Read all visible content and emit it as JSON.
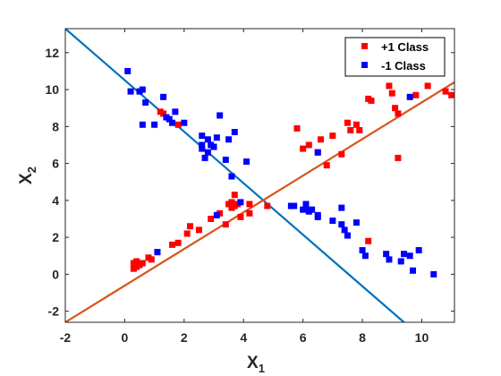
{
  "chart_data": {
    "type": "scatter",
    "title": "",
    "xlabel": {
      "main": "X",
      "sub": "1"
    },
    "ylabel": {
      "main": "X",
      "sub": "2"
    },
    "xlim": [
      -2,
      11.1
    ],
    "ylim": [
      -2.6,
      13.3
    ],
    "xticks": [
      -2,
      0,
      2,
      4,
      6,
      8,
      10
    ],
    "yticks": [
      -2,
      0,
      2,
      4,
      6,
      8,
      10,
      12
    ],
    "xtick_labels": [
      "-2",
      "0",
      "2",
      "4",
      "6",
      "8",
      "10"
    ],
    "ytick_labels": [
      "-2",
      "0",
      "2",
      "4",
      "6",
      "8",
      "10",
      "12"
    ],
    "grid": false,
    "legend_position": "top-right",
    "series": [
      {
        "name": "+1 Class",
        "color": "#ff0000",
        "marker": "square",
        "points": [
          [
            0.3,
            0.6
          ],
          [
            0.3,
            0.3
          ],
          [
            0.4,
            0.4
          ],
          [
            0.5,
            0.6
          ],
          [
            0.5,
            0.5
          ],
          [
            0.4,
            0.7
          ],
          [
            0.6,
            0.6
          ],
          [
            0.8,
            0.9
          ],
          [
            0.9,
            0.8
          ],
          [
            1.1,
            1.2
          ],
          [
            1.6,
            1.6
          ],
          [
            1.8,
            1.7
          ],
          [
            2.1,
            2.2
          ],
          [
            2.2,
            2.6
          ],
          [
            2.5,
            2.4
          ],
          [
            2.9,
            3.0
          ],
          [
            3.2,
            3.3
          ],
          [
            3.4,
            2.7
          ],
          [
            3.5,
            3.8
          ],
          [
            3.6,
            3.6
          ],
          [
            3.6,
            3.9
          ],
          [
            3.7,
            3.7
          ],
          [
            3.7,
            4.3
          ],
          [
            3.8,
            3.8
          ],
          [
            3.9,
            3.1
          ],
          [
            4.2,
            3.3
          ],
          [
            4.2,
            3.8
          ],
          [
            4.8,
            3.7
          ],
          [
            1.2,
            8.8
          ],
          [
            1.3,
            8.7
          ],
          [
            1.8,
            8.1
          ],
          [
            5.8,
            7.9
          ],
          [
            6.0,
            6.8
          ],
          [
            6.2,
            7.0
          ],
          [
            6.5,
            6.6
          ],
          [
            6.6,
            7.3
          ],
          [
            6.8,
            5.9
          ],
          [
            7.0,
            7.5
          ],
          [
            7.3,
            6.5
          ],
          [
            7.5,
            8.2
          ],
          [
            7.6,
            7.8
          ],
          [
            7.8,
            8.1
          ],
          [
            7.9,
            7.8
          ],
          [
            8.2,
            9.5
          ],
          [
            8.3,
            9.4
          ],
          [
            8.2,
            1.8
          ],
          [
            8.9,
            10.2
          ],
          [
            9.0,
            9.8
          ],
          [
            9.1,
            9.0
          ],
          [
            9.2,
            6.3
          ],
          [
            9.2,
            8.7
          ],
          [
            9.8,
            9.7
          ],
          [
            10.2,
            10.2
          ],
          [
            10.8,
            9.9
          ],
          [
            11.0,
            9.7
          ]
        ]
      },
      {
        "name": "-1 Class",
        "color": "#0000ff",
        "marker": "square",
        "points": [
          [
            0.1,
            11.0
          ],
          [
            0.2,
            9.9
          ],
          [
            0.5,
            9.9
          ],
          [
            0.6,
            10.0
          ],
          [
            0.6,
            8.1
          ],
          [
            0.7,
            9.3
          ],
          [
            1.0,
            8.1
          ],
          [
            1.3,
            9.6
          ],
          [
            1.4,
            8.5
          ],
          [
            1.5,
            8.4
          ],
          [
            1.6,
            8.2
          ],
          [
            1.7,
            8.8
          ],
          [
            2.0,
            8.2
          ],
          [
            2.6,
            7.5
          ],
          [
            2.6,
            7.0
          ],
          [
            2.6,
            6.8
          ],
          [
            2.7,
            6.3
          ],
          [
            2.8,
            7.3
          ],
          [
            2.8,
            6.6
          ],
          [
            2.9,
            7.0
          ],
          [
            3.0,
            6.9
          ],
          [
            3.1,
            7.4
          ],
          [
            3.2,
            8.6
          ],
          [
            3.4,
            6.2
          ],
          [
            3.5,
            7.3
          ],
          [
            3.6,
            5.3
          ],
          [
            3.7,
            7.7
          ],
          [
            4.1,
            6.1
          ],
          [
            1.1,
            1.2
          ],
          [
            3.1,
            3.2
          ],
          [
            3.9,
            3.9
          ],
          [
            5.6,
            3.7
          ],
          [
            5.7,
            3.7
          ],
          [
            6.0,
            3.5
          ],
          [
            6.1,
            3.8
          ],
          [
            6.1,
            3.6
          ],
          [
            6.2,
            3.4
          ],
          [
            6.3,
            3.5
          ],
          [
            6.5,
            3.1
          ],
          [
            6.5,
            3.2
          ],
          [
            6.5,
            6.6
          ],
          [
            7.0,
            2.9
          ],
          [
            7.3,
            2.7
          ],
          [
            7.3,
            3.6
          ],
          [
            7.4,
            2.4
          ],
          [
            7.5,
            2.1
          ],
          [
            7.8,
            2.8
          ],
          [
            8.0,
            1.3
          ],
          [
            8.1,
            1.0
          ],
          [
            8.8,
            1.1
          ],
          [
            8.9,
            0.8
          ],
          [
            9.3,
            0.7
          ],
          [
            9.4,
            1.1
          ],
          [
            9.6,
            1.0
          ],
          [
            9.7,
            0.2
          ],
          [
            9.9,
            1.3
          ],
          [
            10.4,
            0.0
          ],
          [
            9.6,
            9.6
          ]
        ]
      }
    ],
    "lines": [
      {
        "name": "blue-boundary",
        "color": "#0072bd",
        "from": [
          -2.0,
          13.3
        ],
        "to": [
          9.4,
          -2.6
        ]
      },
      {
        "name": "orange-boundary",
        "color": "#d95319",
        "from": [
          -2.0,
          -2.6
        ],
        "to": [
          11.1,
          10.4
        ]
      }
    ]
  }
}
